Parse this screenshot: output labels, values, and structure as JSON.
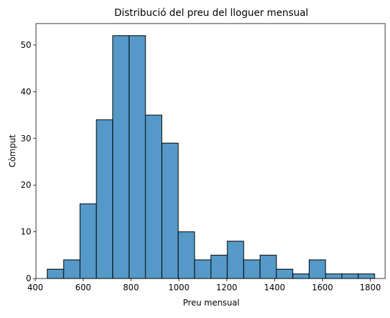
{
  "chart_data": {
    "type": "bar",
    "title": "Distribució del preu del lloguer mensual",
    "xlabel": "Preu mensual",
    "ylabel": "Còmput",
    "xlim": [
      403,
      1862
    ],
    "ylim": [
      0,
      54.6
    ],
    "xticks": [
      400,
      600,
      800,
      1000,
      1200,
      1400,
      1600,
      1800
    ],
    "yticks": [
      0,
      10,
      20,
      30,
      40,
      50
    ],
    "bins": [
      {
        "start": 450,
        "end": 518.4,
        "count": 2
      },
      {
        "start": 518.4,
        "end": 586.8,
        "count": 4
      },
      {
        "start": 586.8,
        "end": 655.2,
        "count": 16
      },
      {
        "start": 655.2,
        "end": 723.6,
        "count": 34
      },
      {
        "start": 723.6,
        "end": 792.0,
        "count": 52
      },
      {
        "start": 792.0,
        "end": 860.4,
        "count": 52
      },
      {
        "start": 860.4,
        "end": 928.8,
        "count": 35
      },
      {
        "start": 928.8,
        "end": 997.2,
        "count": 29
      },
      {
        "start": 997.2,
        "end": 1065.6,
        "count": 10
      },
      {
        "start": 1065.6,
        "end": 1134.0,
        "count": 4
      },
      {
        "start": 1134.0,
        "end": 1202.4,
        "count": 5
      },
      {
        "start": 1202.4,
        "end": 1270.8,
        "count": 8
      },
      {
        "start": 1270.8,
        "end": 1339.2,
        "count": 4
      },
      {
        "start": 1339.2,
        "end": 1407.6,
        "count": 5
      },
      {
        "start": 1407.6,
        "end": 1476.0,
        "count": 2
      },
      {
        "start": 1476.0,
        "end": 1544.4,
        "count": 1
      },
      {
        "start": 1544.4,
        "end": 1612.8,
        "count": 4
      },
      {
        "start": 1612.8,
        "end": 1681.2,
        "count": 1
      },
      {
        "start": 1681.2,
        "end": 1749.6,
        "count": 1
      },
      {
        "start": 1749.6,
        "end": 1818.0,
        "count": 1
      }
    ],
    "bar_color": "#5499c7",
    "edge_color": "#000000",
    "grid": false,
    "legend": "none"
  }
}
